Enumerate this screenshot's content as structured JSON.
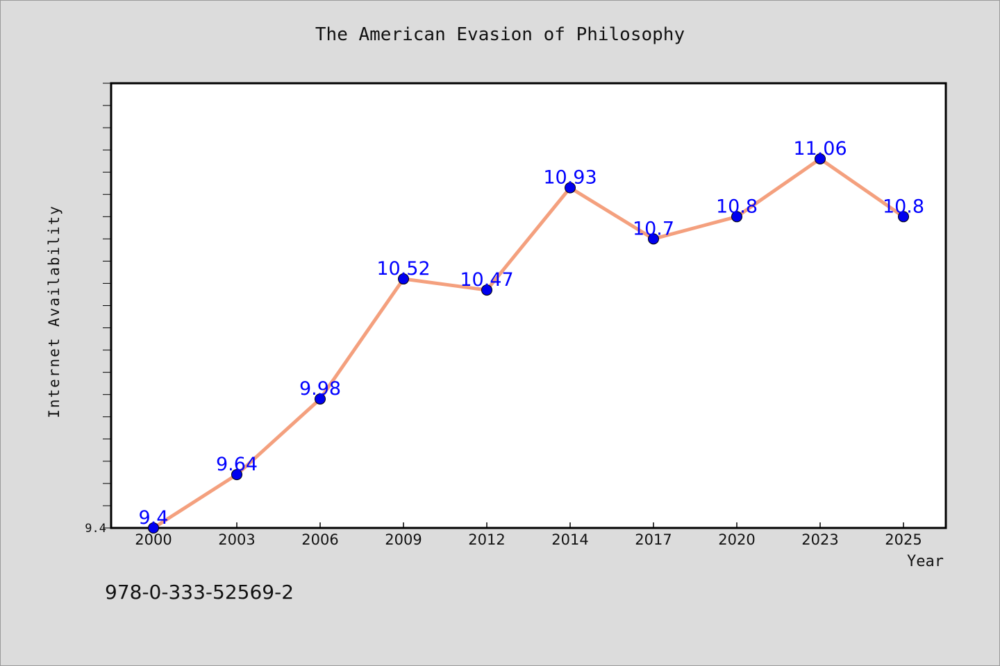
{
  "chart_data": {
    "type": "line",
    "title": "The American Evasion of Philosophy",
    "xlabel": "Year",
    "ylabel": "Internet Availability",
    "x": [
      "2000",
      "2003",
      "2006",
      "2009",
      "2012",
      "2014",
      "2017",
      "2020",
      "2023",
      "2025"
    ],
    "series": [
      {
        "values": [
          9.4,
          9.64,
          9.98,
          10.52,
          10.47,
          10.93,
          10.7,
          10.8,
          11.06,
          10.8
        ],
        "labels": [
          "9.4",
          "9.64",
          "9.98",
          "10.52",
          "10.47",
          "10.93",
          "10.7",
          "10.8",
          "11.06",
          "10.8"
        ],
        "line_color": "#f4a07e",
        "marker_color": "#0000ee"
      }
    ],
    "y_tick_label": "9.4",
    "ylim": [
      9.4,
      11.4
    ],
    "grid": false,
    "label_color": "#0000ff"
  },
  "footer": {
    "isbn": "978-0-333-52569-2"
  },
  "colors": {
    "background": "#dcdcdc",
    "plot_area": "#ffffff"
  }
}
